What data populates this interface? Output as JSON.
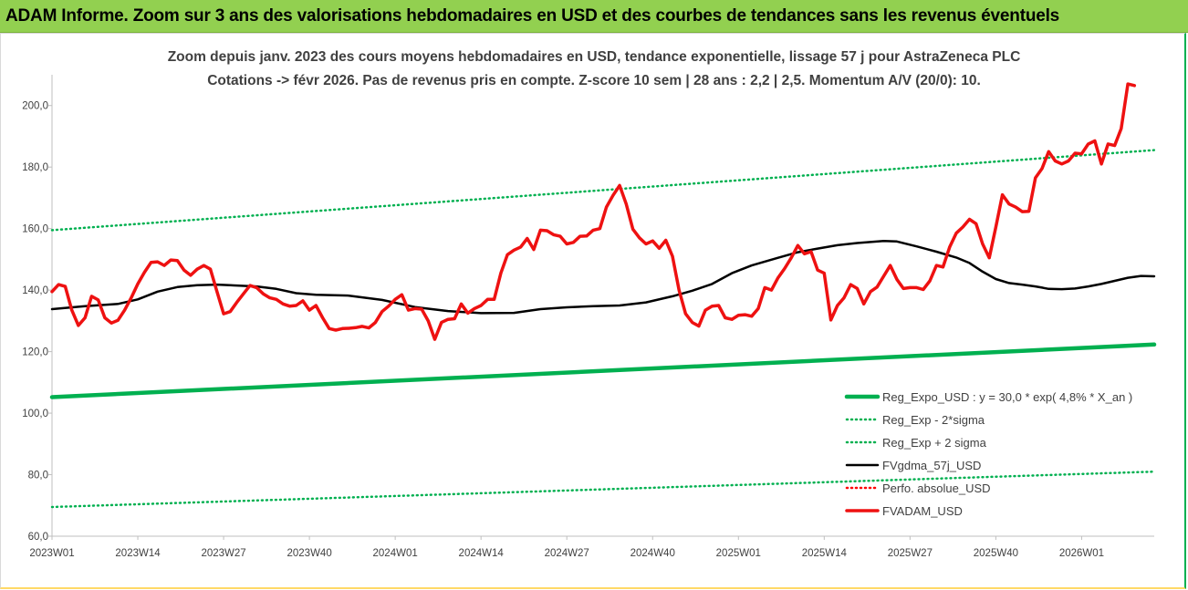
{
  "header": {
    "title": "ADAM Informe. Zoom sur 3 ans des valorisations hebdomadaires en USD et des courbes de tendances sans les revenus éventuels"
  },
  "chart_data": {
    "type": "line",
    "title": "Zoom depuis janv. 2023 des cours moyens hebdomadaires en USD, tendance exponentielle, lissage 57 j pour AstraZeneca PLC",
    "subtitle": "Cotations -> févr 2026. Pas de revenus pris en compte. Z-score 10 sem | 28 ans : 2,2 | 2,5. Momentum A/V (20/0): 10.",
    "xlabel": "",
    "ylabel": "",
    "ylim": [
      60,
      210
    ],
    "yticks": [
      "60,0",
      "80,0",
      "100,0",
      "120,0",
      "140,0",
      "160,0",
      "180,0",
      "200,0"
    ],
    "x_tick_labels": [
      "2023W01",
      "2023W14",
      "2023W27",
      "2023W40",
      "2024W01",
      "2024W14",
      "2024W27",
      "2024W40",
      "2025W01",
      "2025W14",
      "2025W27",
      "2025W40",
      "2026W01"
    ],
    "n_weeks": 168,
    "legend_position": "bottom-right",
    "grid": false,
    "series": [
      {
        "name": "Reg_Expo_USD : y = 30,0 * exp( 4,8% *  X_an )",
        "color": "#00b050",
        "style": "solid-thick",
        "points": [
          [
            0,
            105.2
          ],
          [
            167,
            122.3
          ]
        ]
      },
      {
        "name": "Reg_Exp - 2*sigma",
        "color": "#00b050",
        "style": "dotted",
        "points": [
          [
            0,
            69.5
          ],
          [
            167,
            81.0
          ]
        ]
      },
      {
        "name": "Reg_Exp + 2 sigma",
        "color": "#00b050",
        "style": "dotted",
        "points": [
          [
            0,
            159.5
          ],
          [
            167,
            185.5
          ]
        ]
      },
      {
        "name": "FVgdma_57j_USD",
        "color": "#000000",
        "style": "solid",
        "points": [
          [
            0,
            133.8
          ],
          [
            5,
            134.8
          ],
          [
            10,
            135.5
          ],
          [
            13,
            137.0
          ],
          [
            16,
            139.5
          ],
          [
            19,
            141.0
          ],
          [
            22,
            141.6
          ],
          [
            25,
            141.8
          ],
          [
            28,
            141.5
          ],
          [
            31,
            141.2
          ],
          [
            34,
            140.4
          ],
          [
            37,
            139.0
          ],
          [
            40,
            138.5
          ],
          [
            45,
            138.2
          ],
          [
            50,
            136.8
          ],
          [
            55,
            134.5
          ],
          [
            60,
            133.2
          ],
          [
            65,
            132.5
          ],
          [
            70,
            132.6
          ],
          [
            74,
            133.8
          ],
          [
            78,
            134.4
          ],
          [
            82,
            134.8
          ],
          [
            86,
            135.0
          ],
          [
            90,
            136.0
          ],
          [
            94,
            138.0
          ],
          [
            97,
            139.8
          ],
          [
            100,
            142.0
          ],
          [
            103,
            145.5
          ],
          [
            106,
            148.0
          ],
          [
            110,
            150.5
          ],
          [
            113,
            152.3
          ],
          [
            116,
            153.5
          ],
          [
            119,
            154.6
          ],
          [
            122,
            155.3
          ],
          [
            126,
            156.0
          ],
          [
            128,
            155.8
          ],
          [
            131,
            154.2
          ],
          [
            134,
            152.5
          ],
          [
            137,
            150.6
          ],
          [
            139,
            148.8
          ],
          [
            141,
            146.0
          ],
          [
            143,
            143.6
          ],
          [
            145,
            142.3
          ],
          [
            147,
            141.8
          ],
          [
            149,
            141.2
          ],
          [
            150,
            140.8
          ],
          [
            151,
            140.4
          ],
          [
            153,
            140.3
          ],
          [
            155,
            140.5
          ],
          [
            157,
            141.2
          ],
          [
            159,
            142.0
          ],
          [
            161,
            143.0
          ],
          [
            163,
            144.0
          ],
          [
            165,
            144.6
          ],
          [
            167,
            144.5
          ]
        ]
      },
      {
        "name": "Perfo. absolue_USD",
        "color": "#ff0000",
        "style": "dotted",
        "points": []
      },
      {
        "name": "FVADAM_USD",
        "color": "#ee1111",
        "style": "solid-thick",
        "points": [
          [
            0,
            139.5
          ],
          [
            1,
            141.8
          ],
          [
            2,
            141.2
          ],
          [
            3,
            133.5
          ],
          [
            4,
            128.5
          ],
          [
            5,
            131.0
          ],
          [
            6,
            138.0
          ],
          [
            7,
            136.8
          ],
          [
            8,
            131.0
          ],
          [
            9,
            129.3
          ],
          [
            10,
            130.2
          ],
          [
            11,
            133.5
          ],
          [
            12,
            137.5
          ],
          [
            13,
            142.0
          ],
          [
            14,
            145.8
          ],
          [
            15,
            149.0
          ],
          [
            16,
            149.2
          ],
          [
            17,
            148.0
          ],
          [
            18,
            149.8
          ],
          [
            19,
            149.6
          ],
          [
            20,
            146.5
          ],
          [
            21,
            144.8
          ],
          [
            22,
            146.8
          ],
          [
            23,
            148.0
          ],
          [
            24,
            146.8
          ],
          [
            25,
            139.5
          ],
          [
            26,
            132.3
          ],
          [
            27,
            133.0
          ],
          [
            28,
            136.0
          ],
          [
            29,
            138.8
          ],
          [
            30,
            141.5
          ],
          [
            31,
            140.8
          ],
          [
            32,
            138.8
          ],
          [
            33,
            137.5
          ],
          [
            34,
            137.0
          ],
          [
            35,
            135.5
          ],
          [
            36,
            134.8
          ],
          [
            37,
            135.0
          ],
          [
            38,
            136.5
          ],
          [
            39,
            133.5
          ],
          [
            40,
            135.0
          ],
          [
            41,
            131.0
          ],
          [
            42,
            127.5
          ],
          [
            43,
            127.0
          ],
          [
            44,
            127.5
          ],
          [
            45,
            127.6
          ],
          [
            46,
            127.8
          ],
          [
            47,
            128.2
          ],
          [
            48,
            127.7
          ],
          [
            49,
            129.5
          ],
          [
            50,
            133.0
          ],
          [
            51,
            134.8
          ],
          [
            52,
            137.0
          ],
          [
            53,
            138.5
          ],
          [
            54,
            133.5
          ],
          [
            55,
            134.0
          ],
          [
            56,
            133.8
          ],
          [
            57,
            130.0
          ],
          [
            58,
            124.0
          ],
          [
            59,
            129.5
          ],
          [
            60,
            130.5
          ],
          [
            61,
            130.7
          ],
          [
            62,
            135.5
          ],
          [
            63,
            132.5
          ],
          [
            64,
            134.0
          ],
          [
            65,
            135.0
          ],
          [
            66,
            137.0
          ],
          [
            67,
            137.0
          ],
          [
            68,
            145.5
          ],
          [
            69,
            151.5
          ],
          [
            70,
            153.0
          ],
          [
            71,
            154.0
          ],
          [
            72,
            156.8
          ],
          [
            73,
            153.2
          ],
          [
            74,
            159.5
          ],
          [
            75,
            159.3
          ],
          [
            76,
            158.0
          ],
          [
            77,
            157.5
          ],
          [
            78,
            155.0
          ],
          [
            79,
            155.5
          ],
          [
            80,
            157.5
          ],
          [
            81,
            157.6
          ],
          [
            82,
            159.5
          ],
          [
            83,
            160.0
          ],
          [
            84,
            167.0
          ],
          [
            85,
            170.8
          ],
          [
            86,
            174.0
          ],
          [
            87,
            168.0
          ],
          [
            88,
            159.8
          ],
          [
            89,
            157.0
          ],
          [
            90,
            155.0
          ],
          [
            91,
            156.0
          ],
          [
            92,
            153.6
          ],
          [
            93,
            156.2
          ],
          [
            94,
            151.0
          ],
          [
            95,
            140.0
          ],
          [
            96,
            132.3
          ],
          [
            97,
            129.5
          ],
          [
            98,
            128.3
          ],
          [
            99,
            133.5
          ],
          [
            100,
            134.8
          ],
          [
            101,
            135.0
          ],
          [
            102,
            131.0
          ],
          [
            103,
            130.5
          ],
          [
            104,
            131.8
          ],
          [
            105,
            132.0
          ],
          [
            106,
            131.5
          ],
          [
            107,
            134.0
          ],
          [
            108,
            140.8
          ],
          [
            109,
            140.0
          ],
          [
            110,
            144.0
          ],
          [
            111,
            147.0
          ],
          [
            112,
            150.5
          ],
          [
            113,
            154.5
          ],
          [
            114,
            151.8
          ],
          [
            115,
            152.5
          ],
          [
            116,
            146.5
          ],
          [
            117,
            145.5
          ],
          [
            118,
            130.3
          ],
          [
            119,
            135.0
          ],
          [
            120,
            137.5
          ],
          [
            121,
            141.8
          ],
          [
            122,
            140.5
          ],
          [
            123,
            135.5
          ],
          [
            124,
            139.5
          ],
          [
            125,
            141.0
          ],
          [
            126,
            144.5
          ],
          [
            127,
            148.0
          ],
          [
            128,
            143.5
          ],
          [
            129,
            140.5
          ],
          [
            130,
            140.8
          ],
          [
            131,
            140.8
          ],
          [
            132,
            140.2
          ],
          [
            133,
            143.0
          ],
          [
            134,
            148.0
          ],
          [
            135,
            147.5
          ],
          [
            136,
            154.0
          ],
          [
            137,
            158.5
          ],
          [
            138,
            160.5
          ],
          [
            139,
            163.0
          ],
          [
            140,
            161.6
          ],
          [
            141,
            155.0
          ],
          [
            142,
            150.5
          ],
          [
            143,
            160.5
          ],
          [
            144,
            171.0
          ],
          [
            145,
            168.0
          ],
          [
            146,
            167.0
          ],
          [
            147,
            165.5
          ],
          [
            148,
            165.6
          ],
          [
            149,
            176.5
          ],
          [
            150,
            179.5
          ],
          [
            151,
            185.0
          ],
          [
            152,
            182.0
          ],
          [
            153,
            181.0
          ],
          [
            154,
            182.0
          ],
          [
            155,
            184.5
          ],
          [
            156,
            184.3
          ],
          [
            157,
            187.5
          ],
          [
            158,
            188.5
          ],
          [
            159,
            181.0
          ],
          [
            160,
            187.5
          ],
          [
            161,
            187.0
          ],
          [
            162,
            192.5
          ],
          [
            163,
            207.0
          ],
          [
            164,
            206.5
          ]
        ]
      }
    ]
  }
}
